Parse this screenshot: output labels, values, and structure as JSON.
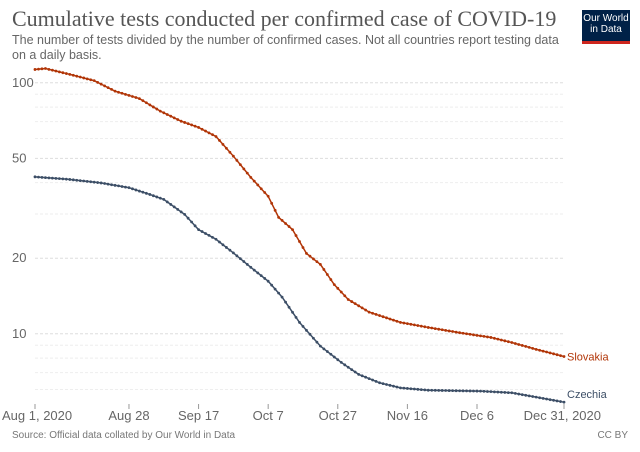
{
  "header": {
    "title": "Cumulative tests conducted per confirmed case of COVID-19",
    "subtitle": "The number of tests divided by the number of confirmed cases. Not all countries report testing data on a daily basis.",
    "logo": "Our World in Data"
  },
  "footer": {
    "source": "Source: Official data collated by Our World in Data",
    "license": "CC BY"
  },
  "chart_data": {
    "type": "line",
    "title": "Cumulative tests conducted per confirmed case of COVID-19",
    "y_scale": "log",
    "ylim": [
      5.3,
      121
    ],
    "grid": "horizontal dashed",
    "x_start": "2020-08-01",
    "x_end": "2020-12-31",
    "x_ticks": [
      {
        "date": "2020-08-01",
        "label": "Aug 1, 2020"
      },
      {
        "date": "2020-08-28",
        "label": "Aug 28"
      },
      {
        "date": "2020-09-17",
        "label": "Sep 17"
      },
      {
        "date": "2020-10-07",
        "label": "Oct 7"
      },
      {
        "date": "2020-10-27",
        "label": "Oct 27"
      },
      {
        "date": "2020-11-16",
        "label": "Nov 16"
      },
      {
        "date": "2020-12-06",
        "label": "Dec 6"
      },
      {
        "date": "2020-12-31",
        "label": "Dec 31, 2020"
      }
    ],
    "y_ticks": [
      {
        "value": 10,
        "label": "10"
      },
      {
        "value": 20,
        "label": "20"
      },
      {
        "value": 50,
        "label": "50"
      },
      {
        "value": 100,
        "label": "100"
      }
    ],
    "y_minor_grid": [
      6,
      7,
      8,
      9,
      30,
      40,
      60,
      70,
      80,
      90
    ],
    "series": [
      {
        "name": "Slovakia",
        "color": "#b13507",
        "points": [
          [
            "2020-08-01",
            113
          ],
          [
            "2020-08-04",
            114
          ],
          [
            "2020-08-11",
            108
          ],
          [
            "2020-08-18",
            102
          ],
          [
            "2020-08-24",
            92.6
          ],
          [
            "2020-08-31",
            86.5
          ],
          [
            "2020-09-06",
            77.1
          ],
          [
            "2020-09-12",
            70.3
          ],
          [
            "2020-09-17",
            66.4
          ],
          [
            "2020-09-22",
            61.1
          ],
          [
            "2020-09-27",
            51.0
          ],
          [
            "2020-10-02",
            42.0
          ],
          [
            "2020-10-07",
            35.3
          ],
          [
            "2020-10-10",
            29.1
          ],
          [
            "2020-10-14",
            26.0
          ],
          [
            "2020-10-18",
            20.9
          ],
          [
            "2020-10-22",
            18.9
          ],
          [
            "2020-10-26",
            15.7
          ],
          [
            "2020-10-30",
            13.7
          ],
          [
            "2020-11-05",
            12.2
          ],
          [
            "2020-11-14",
            11.1
          ],
          [
            "2020-11-22",
            10.6
          ],
          [
            "2020-12-01",
            10.1
          ],
          [
            "2020-12-10",
            9.67
          ],
          [
            "2020-12-16",
            9.23
          ],
          [
            "2020-12-23",
            8.67
          ],
          [
            "2020-12-31",
            8.12
          ]
        ]
      },
      {
        "name": "Czechia",
        "color": "#3c4e66",
        "points": [
          [
            "2020-08-01",
            42.2
          ],
          [
            "2020-08-11",
            41.2
          ],
          [
            "2020-08-20",
            39.9
          ],
          [
            "2020-08-28",
            38.2
          ],
          [
            "2020-09-03",
            35.9
          ],
          [
            "2020-09-07",
            34.3
          ],
          [
            "2020-09-13",
            29.9
          ],
          [
            "2020-09-17",
            26.0
          ],
          [
            "2020-09-22",
            23.8
          ],
          [
            "2020-09-27",
            21.0
          ],
          [
            "2020-10-02",
            18.4
          ],
          [
            "2020-10-07",
            16.2
          ],
          [
            "2020-10-11",
            14.0
          ],
          [
            "2020-10-16",
            11.1
          ],
          [
            "2020-10-22",
            8.93
          ],
          [
            "2020-10-28",
            7.69
          ],
          [
            "2020-11-02",
            6.89
          ],
          [
            "2020-11-08",
            6.38
          ],
          [
            "2020-11-14",
            6.09
          ],
          [
            "2020-11-22",
            5.96
          ],
          [
            "2020-12-07",
            5.91
          ],
          [
            "2020-12-16",
            5.82
          ],
          [
            "2020-12-24",
            5.56
          ],
          [
            "2020-12-31",
            5.34
          ]
        ]
      }
    ]
  }
}
